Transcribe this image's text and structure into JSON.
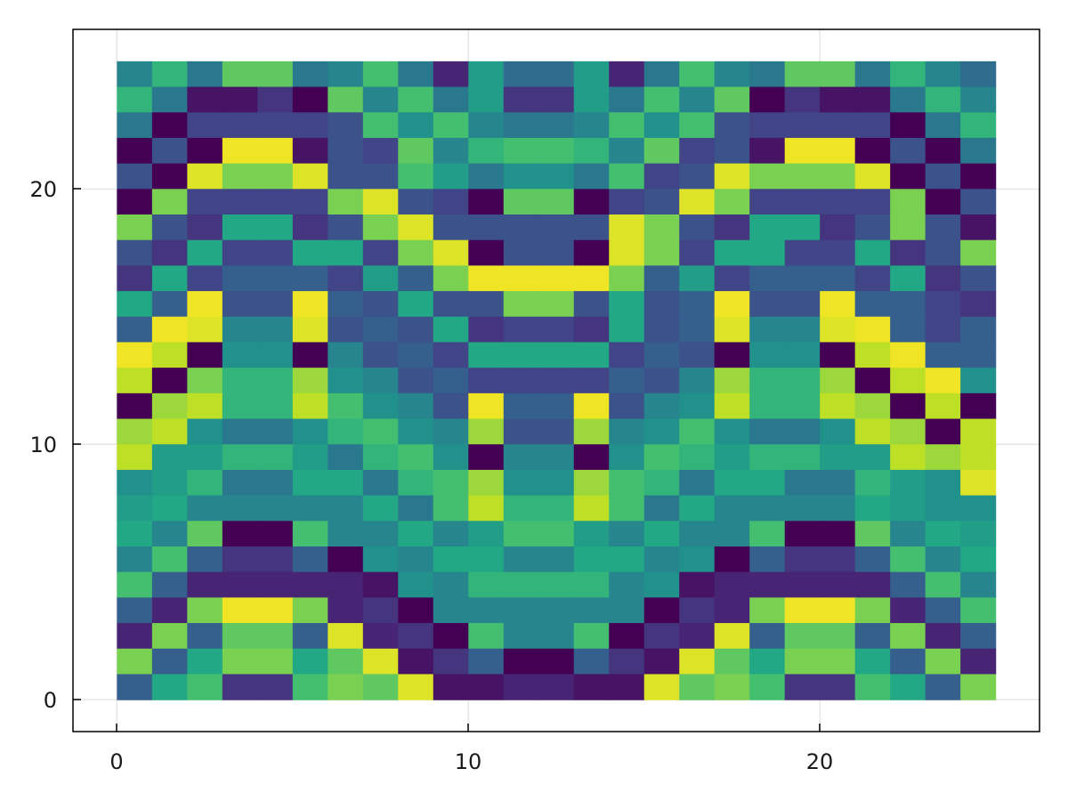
{
  "chart_data": {
    "type": "heatmap",
    "title": "",
    "xlabel": "",
    "ylabel": "",
    "x_range": [
      -1.25,
      26.25
    ],
    "y_range": [
      -1.25,
      26.25
    ],
    "x_ticks": [
      "0",
      "10",
      "20"
    ],
    "y_ticks": [
      "0",
      "10",
      "20"
    ],
    "grid": true,
    "colormap": "viridis",
    "value_range": [
      0,
      1
    ],
    "cell_origin": [
      0,
      0
    ],
    "cell_size": 1,
    "rows": [
      [
        0.45,
        0.65,
        0.4,
        0.75,
        0.75,
        0.4,
        0.45,
        0.7,
        0.4,
        0.1,
        0.55,
        0.35,
        0.35,
        0.55,
        0.1,
        0.4,
        0.7,
        0.45,
        0.4,
        0.75,
        0.75,
        0.4,
        0.65,
        0.45,
        0.35
      ],
      [
        0.65,
        0.4,
        0.05,
        0.05,
        0.15,
        0.0,
        0.75,
        0.45,
        0.7,
        0.4,
        0.55,
        0.15,
        0.15,
        0.55,
        0.4,
        0.7,
        0.45,
        0.75,
        0.0,
        0.15,
        0.05,
        0.05,
        0.4,
        0.65,
        0.45
      ],
      [
        0.4,
        0.0,
        0.2,
        0.2,
        0.2,
        0.2,
        0.25,
        0.7,
        0.5,
        0.7,
        0.45,
        0.4,
        0.4,
        0.45,
        0.7,
        0.5,
        0.7,
        0.25,
        0.2,
        0.2,
        0.2,
        0.2,
        0.0,
        0.4,
        0.65
      ],
      [
        0.0,
        0.25,
        0.0,
        0.98,
        0.98,
        0.05,
        0.25,
        0.2,
        0.75,
        0.45,
        0.65,
        0.7,
        0.7,
        0.65,
        0.45,
        0.75,
        0.2,
        0.25,
        0.05,
        0.98,
        0.98,
        0.0,
        0.25,
        0.0,
        0.4
      ],
      [
        0.25,
        0.0,
        0.95,
        0.8,
        0.8,
        0.95,
        0.25,
        0.25,
        0.7,
        0.55,
        0.4,
        0.5,
        0.5,
        0.4,
        0.7,
        0.2,
        0.25,
        0.95,
        0.8,
        0.8,
        0.8,
        0.95,
        0.0,
        0.25,
        0.0
      ],
      [
        0.0,
        0.8,
        0.2,
        0.2,
        0.2,
        0.2,
        0.8,
        0.95,
        0.25,
        0.2,
        0.0,
        0.75,
        0.75,
        0.0,
        0.2,
        0.25,
        0.95,
        0.8,
        0.2,
        0.2,
        0.2,
        0.2,
        0.8,
        0.0,
        0.25
      ],
      [
        0.8,
        0.25,
        0.15,
        0.6,
        0.6,
        0.15,
        0.25,
        0.8,
        0.95,
        0.25,
        0.25,
        0.25,
        0.25,
        0.25,
        0.95,
        0.8,
        0.25,
        0.15,
        0.6,
        0.6,
        0.15,
        0.25,
        0.8,
        0.25,
        0.05
      ],
      [
        0.25,
        0.15,
        0.6,
        0.2,
        0.2,
        0.6,
        0.6,
        0.2,
        0.8,
        0.95,
        0.0,
        0.25,
        0.25,
        0.0,
        0.95,
        0.8,
        0.2,
        0.6,
        0.6,
        0.2,
        0.2,
        0.6,
        0.15,
        0.25,
        0.8
      ],
      [
        0.15,
        0.6,
        0.2,
        0.3,
        0.3,
        0.3,
        0.2,
        0.55,
        0.3,
        0.8,
        0.98,
        0.98,
        0.98,
        0.98,
        0.8,
        0.3,
        0.55,
        0.2,
        0.3,
        0.3,
        0.3,
        0.2,
        0.6,
        0.15,
        0.25
      ],
      [
        0.6,
        0.3,
        0.98,
        0.25,
        0.25,
        0.98,
        0.3,
        0.25,
        0.6,
        0.25,
        0.25,
        0.8,
        0.8,
        0.25,
        0.6,
        0.25,
        0.3,
        0.98,
        0.25,
        0.25,
        0.98,
        0.3,
        0.3,
        0.2,
        0.15
      ],
      [
        0.3,
        0.98,
        0.95,
        0.45,
        0.45,
        0.95,
        0.25,
        0.3,
        0.25,
        0.6,
        0.15,
        0.2,
        0.2,
        0.15,
        0.6,
        0.25,
        0.3,
        0.95,
        0.45,
        0.45,
        0.95,
        0.98,
        0.3,
        0.2,
        0.3
      ],
      [
        0.98,
        0.9,
        0.0,
        0.5,
        0.5,
        0.0,
        0.45,
        0.25,
        0.3,
        0.2,
        0.6,
        0.6,
        0.6,
        0.6,
        0.2,
        0.3,
        0.25,
        0.0,
        0.5,
        0.5,
        0.0,
        0.9,
        0.98,
        0.3,
        0.3
      ],
      [
        0.9,
        0.0,
        0.8,
        0.65,
        0.65,
        0.85,
        0.5,
        0.45,
        0.25,
        0.3,
        0.2,
        0.2,
        0.2,
        0.2,
        0.3,
        0.25,
        0.45,
        0.85,
        0.65,
        0.65,
        0.85,
        0.0,
        0.9,
        0.98,
        0.5
      ],
      [
        0.0,
        0.85,
        0.9,
        0.65,
        0.65,
        0.9,
        0.7,
        0.5,
        0.45,
        0.25,
        0.98,
        0.3,
        0.3,
        0.98,
        0.25,
        0.45,
        0.5,
        0.9,
        0.65,
        0.65,
        0.9,
        0.85,
        0.0,
        0.9,
        0.0
      ],
      [
        0.85,
        0.9,
        0.5,
        0.4,
        0.4,
        0.5,
        0.65,
        0.7,
        0.5,
        0.45,
        0.85,
        0.25,
        0.25,
        0.85,
        0.45,
        0.5,
        0.7,
        0.5,
        0.4,
        0.4,
        0.5,
        0.9,
        0.85,
        0.0,
        0.9
      ],
      [
        0.9,
        0.55,
        0.55,
        0.65,
        0.65,
        0.55,
        0.4,
        0.65,
        0.7,
        0.5,
        0.0,
        0.45,
        0.45,
        0.0,
        0.5,
        0.7,
        0.65,
        0.55,
        0.65,
        0.65,
        0.55,
        0.55,
        0.9,
        0.85,
        0.9
      ],
      [
        0.5,
        0.55,
        0.65,
        0.4,
        0.4,
        0.6,
        0.6,
        0.4,
        0.65,
        0.7,
        0.85,
        0.5,
        0.5,
        0.85,
        0.7,
        0.65,
        0.4,
        0.6,
        0.6,
        0.4,
        0.4,
        0.65,
        0.55,
        0.5,
        0.95
      ],
      [
        0.55,
        0.6,
        0.45,
        0.45,
        0.45,
        0.45,
        0.45,
        0.6,
        0.4,
        0.7,
        0.9,
        0.65,
        0.65,
        0.9,
        0.7,
        0.4,
        0.6,
        0.45,
        0.45,
        0.45,
        0.45,
        0.6,
        0.55,
        0.5,
        0.5
      ],
      [
        0.6,
        0.45,
        0.75,
        0.0,
        0.0,
        0.7,
        0.45,
        0.45,
        0.6,
        0.45,
        0.55,
        0.7,
        0.7,
        0.55,
        0.45,
        0.6,
        0.45,
        0.45,
        0.7,
        0.0,
        0.0,
        0.75,
        0.45,
        0.6,
        0.55
      ],
      [
        0.45,
        0.7,
        0.3,
        0.15,
        0.15,
        0.3,
        0.0,
        0.5,
        0.45,
        0.6,
        0.6,
        0.45,
        0.45,
        0.6,
        0.6,
        0.45,
        0.5,
        0.0,
        0.3,
        0.15,
        0.15,
        0.3,
        0.7,
        0.45,
        0.6
      ],
      [
        0.7,
        0.3,
        0.1,
        0.1,
        0.1,
        0.1,
        0.1,
        0.05,
        0.5,
        0.45,
        0.65,
        0.65,
        0.65,
        0.65,
        0.45,
        0.5,
        0.05,
        0.1,
        0.1,
        0.1,
        0.1,
        0.1,
        0.3,
        0.7,
        0.45
      ],
      [
        0.3,
        0.1,
        0.8,
        0.98,
        0.98,
        0.8,
        0.1,
        0.15,
        0.0,
        0.45,
        0.45,
        0.45,
        0.45,
        0.45,
        0.45,
        0.0,
        0.15,
        0.1,
        0.8,
        0.98,
        0.98,
        0.8,
        0.1,
        0.3,
        0.7
      ],
      [
        0.1,
        0.8,
        0.3,
        0.75,
        0.75,
        0.3,
        0.95,
        0.1,
        0.15,
        0.0,
        0.7,
        0.45,
        0.45,
        0.7,
        0.0,
        0.15,
        0.1,
        0.95,
        0.3,
        0.75,
        0.75,
        0.3,
        0.8,
        0.1,
        0.3
      ],
      [
        0.8,
        0.3,
        0.6,
        0.8,
        0.8,
        0.6,
        0.75,
        0.95,
        0.05,
        0.15,
        0.3,
        0.0,
        0.0,
        0.3,
        0.15,
        0.05,
        0.95,
        0.75,
        0.6,
        0.8,
        0.8,
        0.6,
        0.3,
        0.8,
        0.1
      ],
      [
        0.3,
        0.6,
        0.7,
        0.15,
        0.15,
        0.7,
        0.8,
        0.75,
        0.95,
        0.05,
        0.05,
        0.1,
        0.1,
        0.05,
        0.05,
        0.95,
        0.75,
        0.8,
        0.7,
        0.15,
        0.15,
        0.7,
        0.6,
        0.3,
        0.8
      ]
    ]
  }
}
